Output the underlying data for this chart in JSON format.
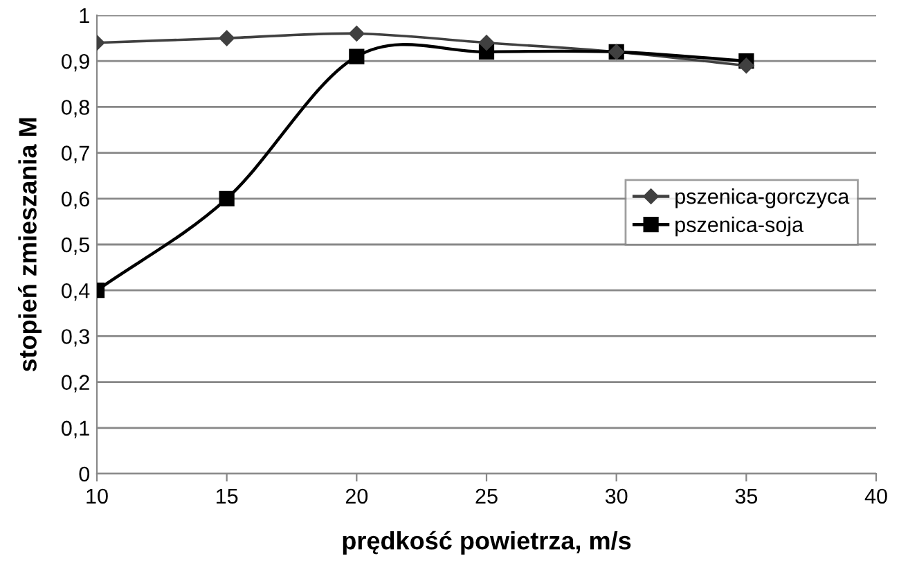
{
  "chart_data": {
    "type": "line",
    "xlabel": "prędkość powietrza, m/s",
    "ylabel": "stopień zmieszania M",
    "x": [
      10,
      15,
      20,
      25,
      30,
      35
    ],
    "series": [
      {
        "name": "pszenica-gorczyca",
        "color": "#404040",
        "marker": "diamond",
        "values": [
          0.94,
          0.95,
          0.96,
          0.94,
          0.92,
          0.89
        ]
      },
      {
        "name": "pszenica-soja",
        "color": "#000000",
        "marker": "square",
        "values": [
          0.4,
          0.6,
          0.91,
          0.92,
          0.92,
          0.9
        ]
      }
    ],
    "xlim": [
      10,
      40
    ],
    "xticks": [
      10,
      15,
      20,
      25,
      30,
      35,
      40
    ],
    "ylim": [
      0,
      1
    ],
    "yticks": [
      0,
      {
        "value": 0.1,
        "label": "0,1"
      },
      {
        "value": 0.2,
        "label": "0,2"
      },
      {
        "value": 0.3,
        "label": "0,3"
      },
      {
        "value": 0.4,
        "label": "0,4"
      },
      {
        "value": 0.5,
        "label": "0,5"
      },
      {
        "value": 0.6,
        "label": "0,6"
      },
      {
        "value": 0.7,
        "label": "0,7"
      },
      {
        "value": 0.8,
        "label": "0,8"
      },
      {
        "value": 0.9,
        "label": "0,9"
      },
      1
    ],
    "grid": "y",
    "legend": "right",
    "line_style": "solid"
  }
}
